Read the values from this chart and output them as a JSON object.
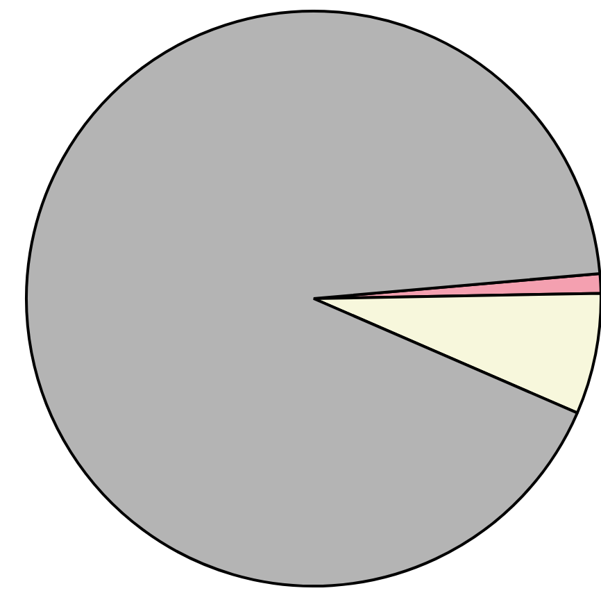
{
  "chart_data": {
    "type": "pie",
    "categories": [
      null,
      null,
      null
    ],
    "values": [
      1.1,
      6.8,
      92.1
    ],
    "colors": [
      "#f4a0b0",
      "#f7f7dc",
      "#b4b4b4"
    ]
  }
}
